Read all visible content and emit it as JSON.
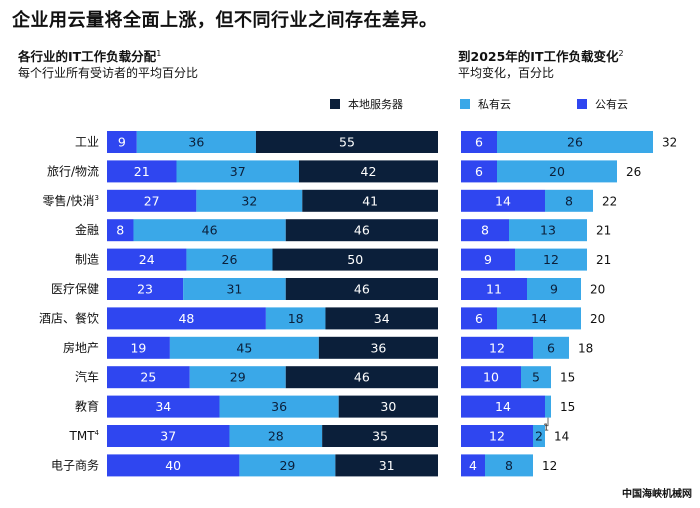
{
  "headline": "企业用云量将全面上涨，但不同行业之间存在差异。",
  "left_panel": {
    "title": "各行业的IT工作负载分配",
    "title_sup": "1",
    "subtitle": "每个行业所有受访者的平均百分比"
  },
  "right_panel": {
    "title": "到2025年的IT工作负载变化",
    "title_sup": "2",
    "subtitle": "平均变化，百分比"
  },
  "footer": "中国海峡机械网",
  "colors": {
    "on_premise": "#0b1f3a",
    "private_cloud": "#3aa8e8",
    "public_cloud": "#2f46f0"
  },
  "chart_data": [
    {
      "type": "bar",
      "orientation": "horizontal",
      "stacked": true,
      "categories": [
        "工业",
        "旅行/物流",
        "零售/快消",
        "金融",
        "制造",
        "医疗保健",
        "酒店、餐饮",
        "房地产",
        "汽车",
        "教育",
        "TMT",
        "电子商务"
      ],
      "category_sups": [
        "",
        "",
        "3",
        "",
        "",
        "",
        "",
        "",
        "",
        "",
        "4",
        ""
      ],
      "series": [
        {
          "name": "公有云",
          "values": [
            9,
            21,
            27,
            8,
            24,
            23,
            48,
            19,
            25,
            34,
            37,
            40
          ]
        },
        {
          "name": "私有云",
          "values": [
            36,
            37,
            32,
            46,
            26,
            31,
            18,
            45,
            29,
            36,
            28,
            29
          ]
        },
        {
          "name": "本地服务器",
          "values": [
            55,
            42,
            41,
            46,
            50,
            46,
            34,
            36,
            46,
            30,
            35,
            31
          ]
        }
      ],
      "xlim": [
        0,
        100
      ],
      "legend": [
        "本地服务器",
        "私有云",
        "公有云"
      ],
      "legend_position": "top"
    },
    {
      "type": "bar",
      "orientation": "horizontal",
      "stacked": true,
      "categories": [
        "工业",
        "旅行/物流",
        "零售/快消",
        "金融",
        "制造",
        "医疗保健",
        "酒店、餐饮",
        "房地产",
        "汽车",
        "教育",
        "TMT",
        "电子商务"
      ],
      "series": [
        {
          "name": "公有云",
          "values": [
            6,
            6,
            14,
            8,
            9,
            11,
            6,
            12,
            10,
            14,
            12,
            4
          ]
        },
        {
          "name": "私有云",
          "values": [
            26,
            20,
            8,
            13,
            12,
            9,
            14,
            6,
            5,
            1,
            2,
            8
          ]
        }
      ],
      "totals": [
        32,
        26,
        22,
        21,
        21,
        20,
        20,
        18,
        15,
        15,
        14,
        12
      ],
      "xlim": [
        0,
        34
      ]
    }
  ]
}
